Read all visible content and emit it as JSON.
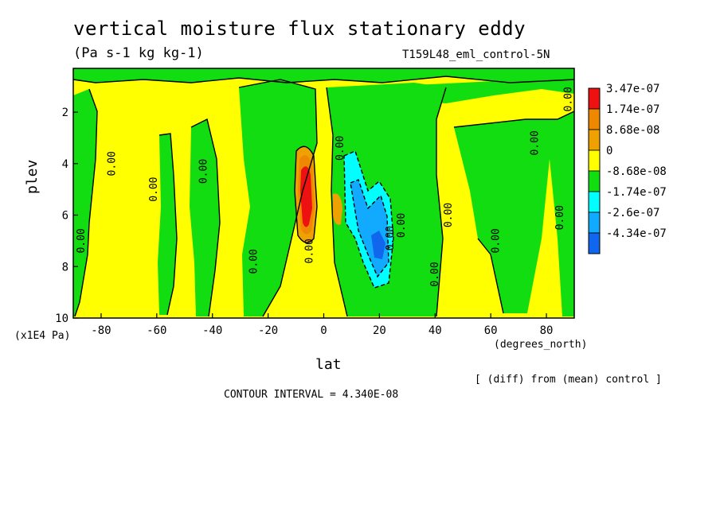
{
  "chart_data": {
    "type": "heatmap",
    "title": "vertical moisture flux stationary eddy",
    "subtitle": "(Pa s-1 kg kg-1)",
    "run_label": "T159L48_eml_control-5N",
    "xlabel": "lat",
    "ylabel": "plev",
    "x_unit": "(degrees_north)",
    "y_unit": "(x1E4 Pa)",
    "xlim": [
      -90,
      90
    ],
    "ylim": [
      0.3,
      10
    ],
    "y_inverted": true,
    "x_ticks": [
      -80,
      -60,
      -40,
      -20,
      0,
      20,
      40,
      60,
      80
    ],
    "x_tick_labels": [
      "-80",
      "-60",
      "-40",
      "-20",
      "0",
      "20",
      "40",
      "60",
      "80"
    ],
    "y_ticks": [
      2,
      4,
      6,
      8,
      10
    ],
    "y_tick_labels": [
      "2",
      "4",
      "6",
      "8",
      "10"
    ],
    "legend_position": "right",
    "legend": [
      {
        "label": "3.47e-07",
        "color": "#ee1111"
      },
      {
        "label": "1.74e-07",
        "color": "#ee8800"
      },
      {
        "label": "8.68e-08",
        "color": "#eea100"
      },
      {
        "label": "0",
        "color": "#ffff00"
      },
      {
        "label": "-8.68e-08",
        "color": "#11dd11"
      },
      {
        "label": "-1.74e-07",
        "color": "#00ffff"
      },
      {
        "label": "-2.6e-07",
        "color": "#11aaff"
      },
      {
        "label": "-4.34e-07",
        "color": "#1166ee"
      }
    ],
    "contour_labels": [
      {
        "text": "0.00",
        "lat": -86,
        "plev": 7.0
      },
      {
        "text": "0.00",
        "lat": -75,
        "plev": 4.0
      },
      {
        "text": "0.00",
        "lat": -60,
        "plev": 5.0
      },
      {
        "text": "0.00",
        "lat": -42,
        "plev": 4.3
      },
      {
        "text": "0.00",
        "lat": -24,
        "plev": 7.8
      },
      {
        "text": "0.00",
        "lat": -4,
        "plev": 7.4
      },
      {
        "text": "0.00",
        "lat": 7,
        "plev": 3.4
      },
      {
        "text": "0.00",
        "lat": 25,
        "plev": 6.9
      },
      {
        "text": "0.00",
        "lat": 29,
        "plev": 6.4
      },
      {
        "text": "0.00",
        "lat": 41,
        "plev": 8.3
      },
      {
        "text": "0.00",
        "lat": 46,
        "plev": 6.0
      },
      {
        "text": "0.00",
        "lat": 63,
        "plev": 7.0
      },
      {
        "text": "0.00",
        "lat": 77,
        "plev": 3.2
      },
      {
        "text": "0.00",
        "lat": 86,
        "plev": 6.1
      },
      {
        "text": "0.00",
        "lat": 89,
        "plev": 1.5
      }
    ],
    "diff_note": "[ (diff) from (mean) control ]",
    "contour_interval": "CONTOUR INTERVAL = 4.340E-08"
  }
}
